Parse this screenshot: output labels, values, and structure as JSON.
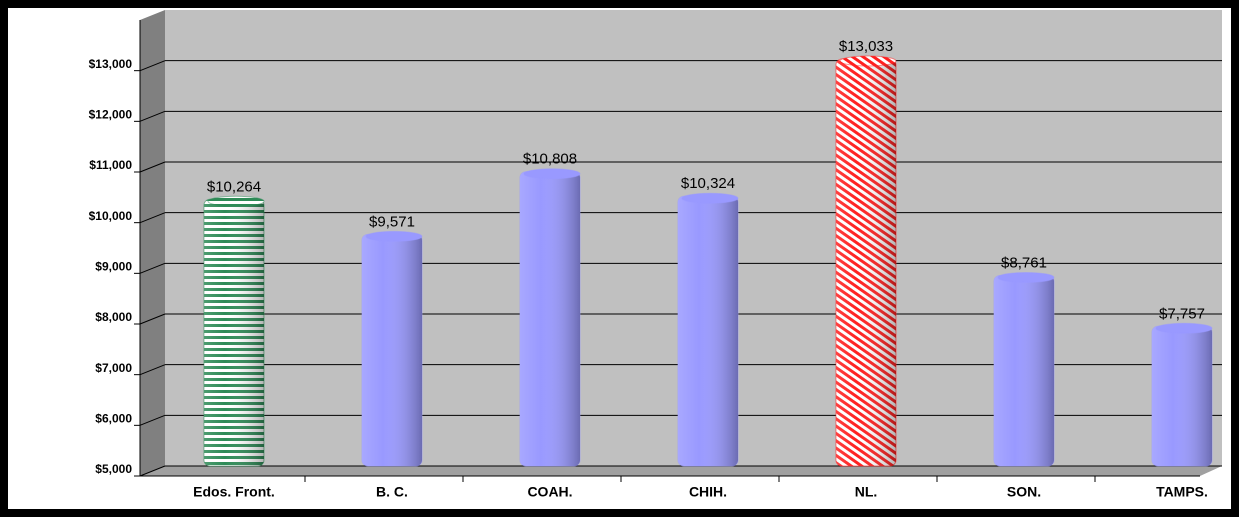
{
  "chart_data": {
    "type": "bar",
    "categories": [
      "Edos. Front.",
      "B. C.",
      "COAH.",
      "CHIH.",
      "NL.",
      "SON.",
      "TAMPS."
    ],
    "values": [
      10264,
      9571,
      10808,
      10324,
      13033,
      8761,
      7757
    ],
    "value_labels": [
      "$10,264",
      "$9,571",
      "$10,808",
      "$10,324",
      "$13,033",
      "$8,761",
      "$7,757"
    ],
    "colors": [
      "#2e8b57",
      "#9999ff",
      "#9999ff",
      "#9999ff",
      "#ff2020",
      "#9999ff",
      "#9999ff"
    ],
    "patterns": [
      "horizontal-stripes",
      "solid",
      "solid",
      "solid",
      "diagonal-stripes",
      "solid",
      "solid"
    ],
    "ylim": [
      5000,
      14000
    ],
    "yticks": [
      {
        "value": 5000,
        "label": "$5,000"
      },
      {
        "value": 6000,
        "label": "$6,000"
      },
      {
        "value": 7000,
        "label": "$7,000"
      },
      {
        "value": 8000,
        "label": "$8,000"
      },
      {
        "value": 9000,
        "label": "$9,000"
      },
      {
        "value": 10000,
        "label": "$10,000"
      },
      {
        "value": 11000,
        "label": "$11,000"
      },
      {
        "value": 12000,
        "label": "$12,000"
      },
      {
        "value": 13000,
        "label": "$13,000"
      }
    ],
    "grid": true
  }
}
